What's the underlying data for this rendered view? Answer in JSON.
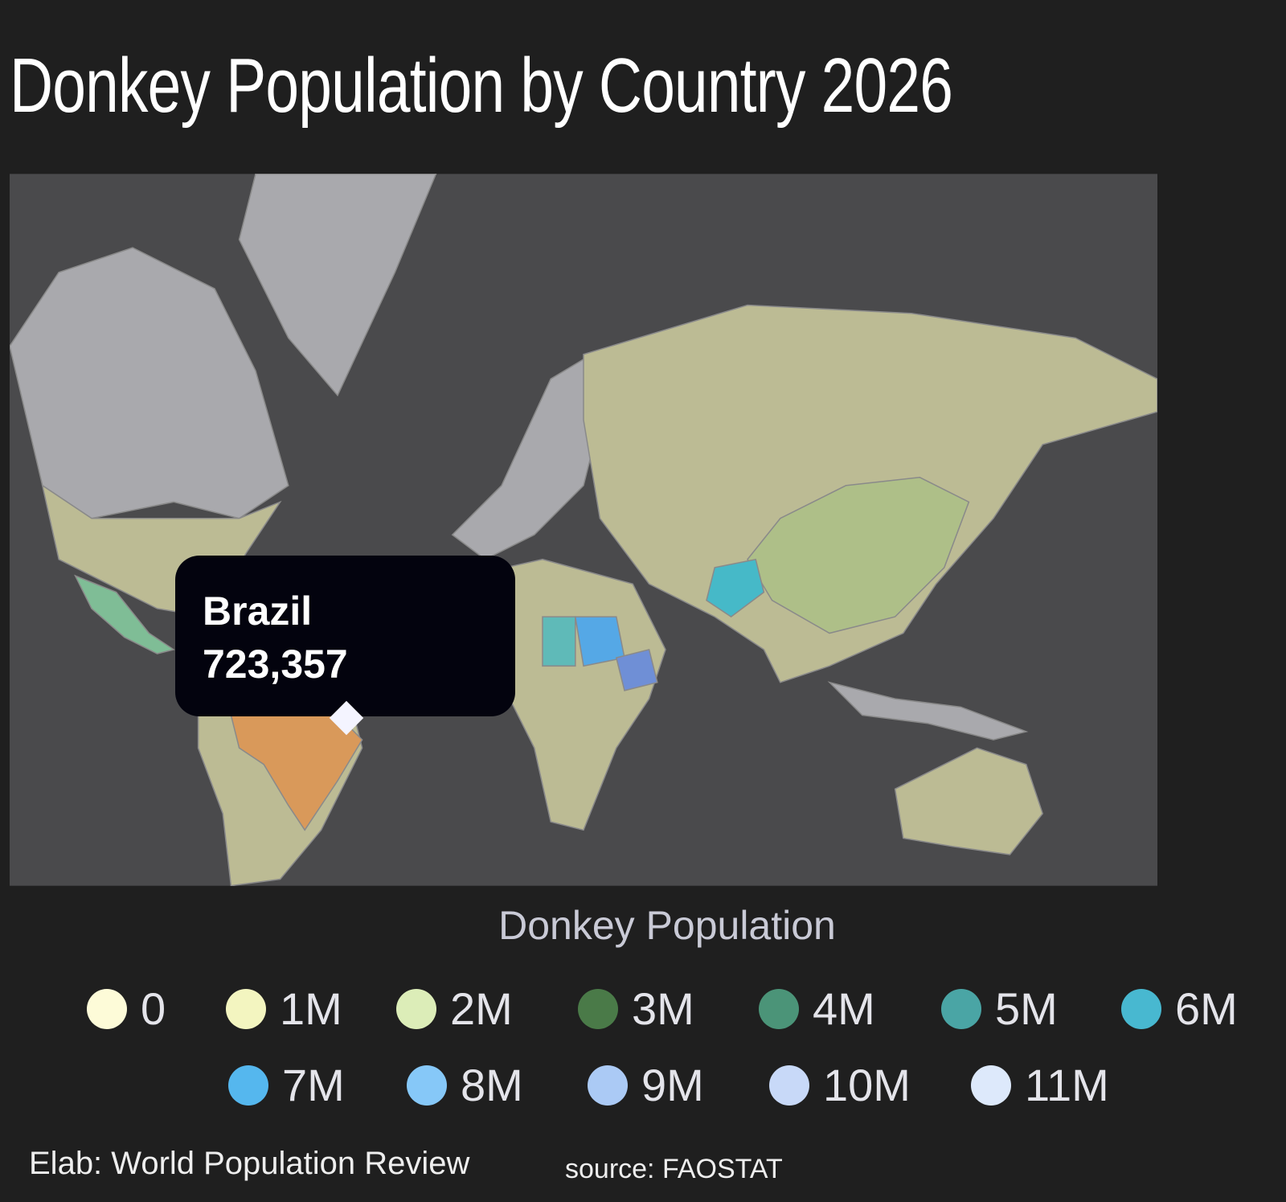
{
  "title": "Donkey Population by Country 2026",
  "tooltip": {
    "country": "Brazil",
    "value": {
      "value": 723357,
      "label": "723,357"
    }
  },
  "legend": {
    "title": "Donkey Population",
    "items": [
      {
        "value": 0,
        "color": "#fdfbd8"
      },
      {
        "value": 1000000,
        "label": "1M",
        "color": "#f3f5c0"
      },
      {
        "value": 2000000,
        "label": "2M",
        "color": "#dcedb8"
      },
      {
        "value": 3000000,
        "label": "3M",
        "color": "#4a7a48"
      },
      {
        "value": 4000000,
        "label": "4M",
        "color": "#4b9478"
      },
      {
        "value": 5000000,
        "label": "5M",
        "color": "#4aa5a5"
      },
      {
        "value": 6000000,
        "label": "6M",
        "color": "#48b8d0"
      },
      {
        "value": 7000000,
        "label": "7M",
        "color": "#55b7ee"
      },
      {
        "value": 8000000,
        "label": "8M",
        "color": "#86c8f8"
      },
      {
        "value": 9000000,
        "label": "9M",
        "color": "#abcaf5"
      },
      {
        "value": 10000000,
        "label": "10M",
        "color": "#c8d9f8"
      },
      {
        "value": 11000000,
        "label": "11M",
        "color": "#dde9fb"
      }
    ]
  },
  "footer": {
    "credit": "Elab: World Population Review",
    "source": "source: FAOSTAT"
  }
}
